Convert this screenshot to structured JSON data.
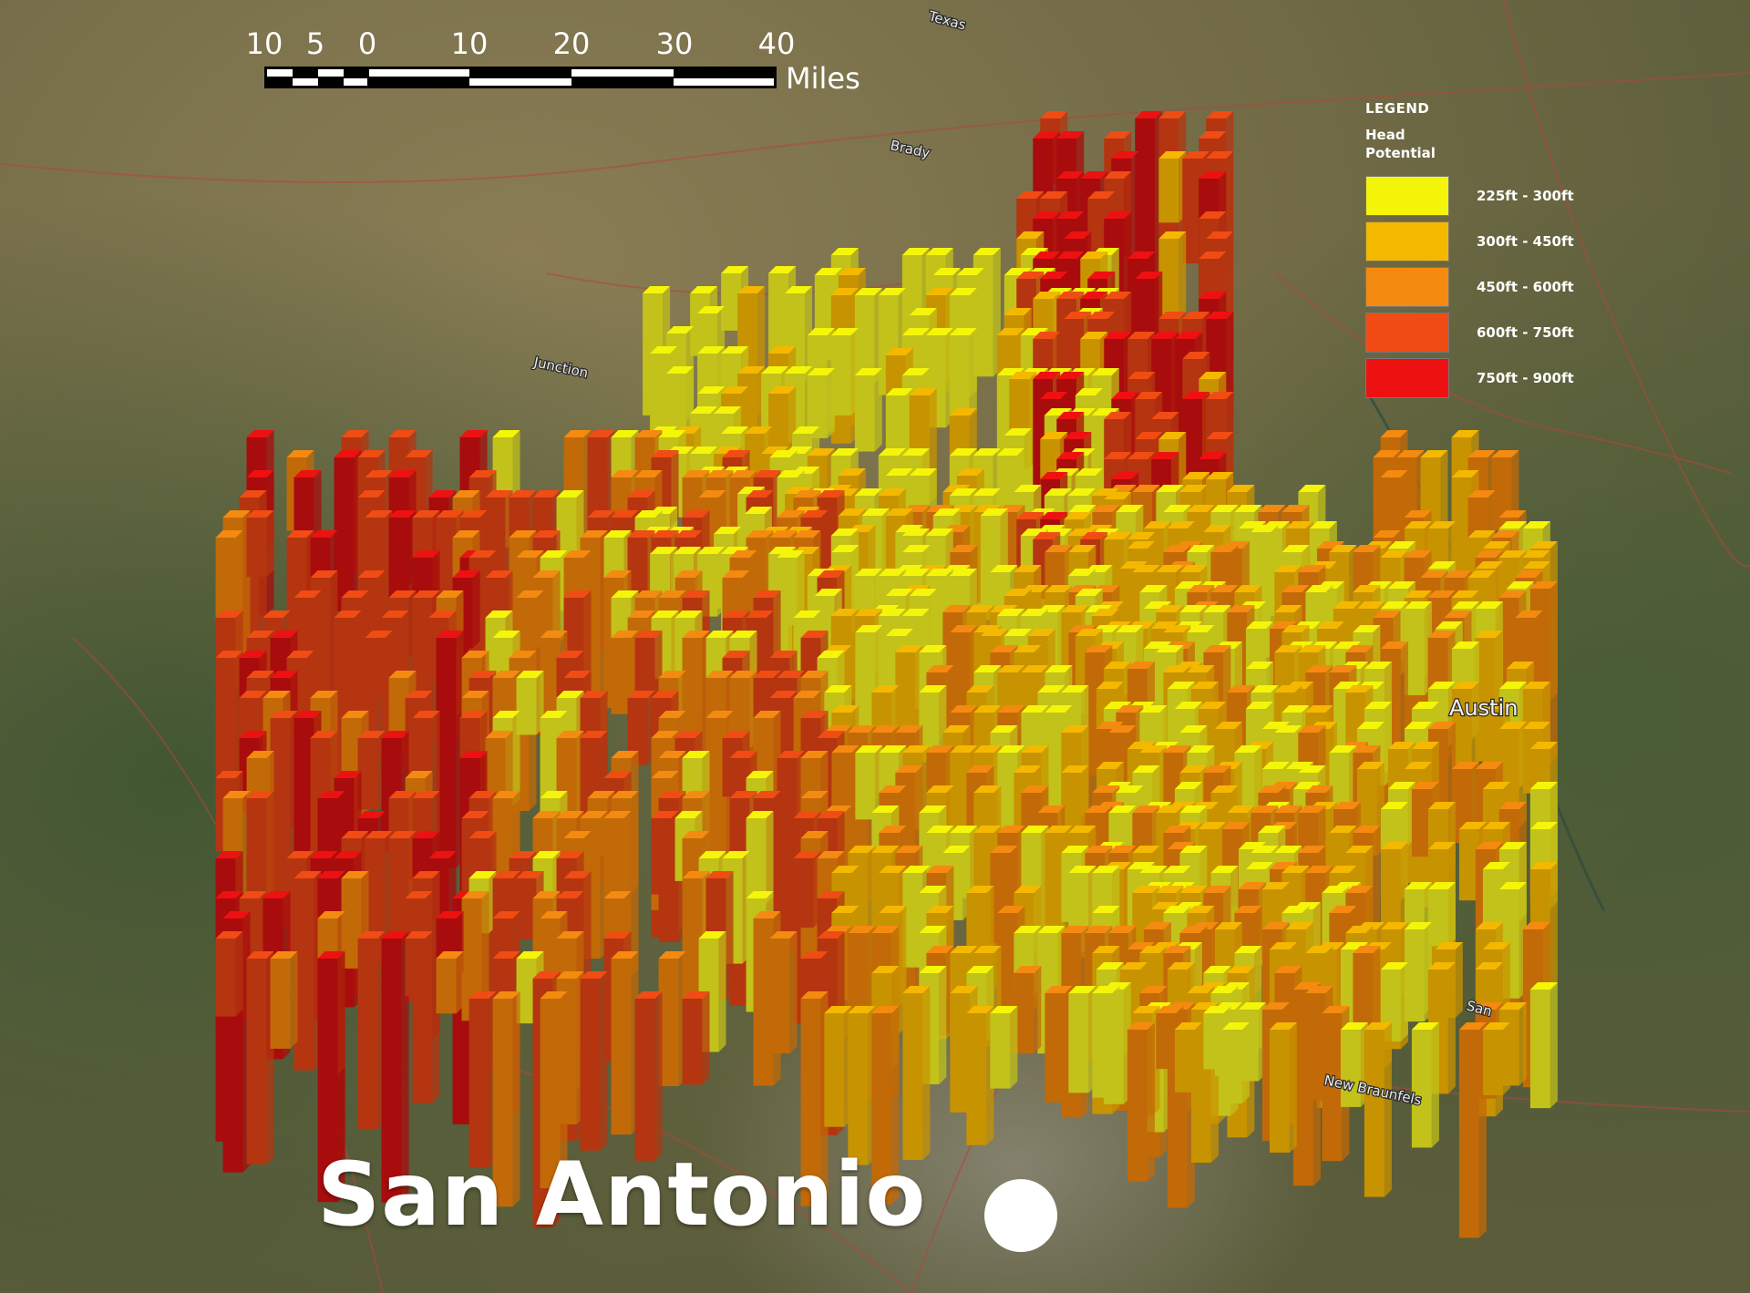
{
  "scale_bar": {
    "ticks": [
      "10",
      "5",
      "0",
      "10",
      "20",
      "30",
      "40"
    ],
    "units": "Miles"
  },
  "legend": {
    "title": "LEGEND",
    "subtitle": "Head Potential",
    "items": [
      {
        "label": "225ft - 300ft",
        "color": "#f5f50a"
      },
      {
        "label": "300ft - 450ft",
        "color": "#f5b800"
      },
      {
        "label": "450ft - 600ft",
        "color": "#f58a10"
      },
      {
        "label": "600ft - 750ft",
        "color": "#f04c14"
      },
      {
        "label": "750ft - 900ft",
        "color": "#ee1111"
      }
    ]
  },
  "places": {
    "texas": "Texas",
    "brady": "Brady",
    "junction": "Junction",
    "austin": "Austin",
    "san": "San",
    "new_braunfels": "New Braunfels"
  },
  "city": {
    "name": "San Antonio"
  },
  "colors": {
    "bar_side": [
      "#c2c21a",
      "#c89300",
      "#c26a08",
      "#b43510",
      "#a80c0c"
    ]
  }
}
